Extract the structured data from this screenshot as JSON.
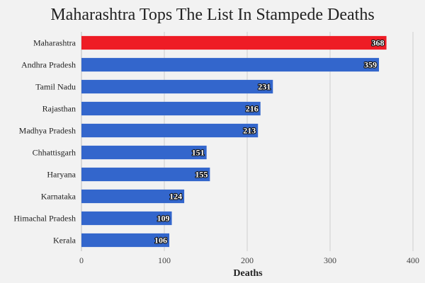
{
  "chart_data": {
    "type": "bar",
    "orientation": "horizontal",
    "title": "Maharashtra Tops The List In Stampede Deaths",
    "xlabel": "Deaths",
    "ylabel": "",
    "xlim": [
      0,
      400
    ],
    "x_ticks": [
      0,
      100,
      200,
      300,
      400
    ],
    "grid": true,
    "categories": [
      "Maharashtra",
      "Andhra Pradesh",
      "Tamil Nadu",
      "Rajasthan",
      "Madhya Pradesh",
      "Chhattisgarh",
      "Haryana",
      "Karnataka",
      "Himachal Pradesh",
      "Kerala"
    ],
    "values": [
      368,
      359,
      231,
      216,
      213,
      151,
      155,
      124,
      109,
      106
    ],
    "highlight_color": "#ee1c25",
    "bar_color": "#3366cc"
  }
}
